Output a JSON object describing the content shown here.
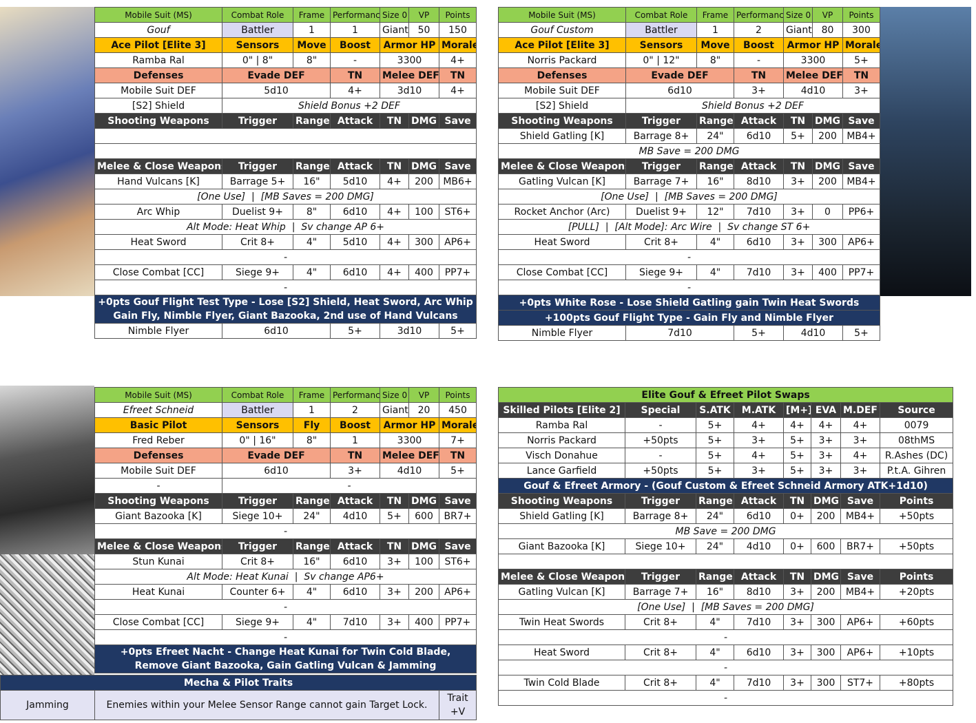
{
  "cards": [
    {
      "header": [
        "Mobile Suit (MS)",
        "Combat Role",
        "Frame",
        "Performance",
        "Size 0",
        "VP",
        "Points"
      ],
      "suit": [
        "Gouf",
        "Battler",
        "1",
        "1",
        "Giant",
        "50",
        "150"
      ],
      "pilot_header": [
        "Ace Pilot [Elite 3]",
        "Sensors",
        "Move",
        "Boost",
        "Armor HP",
        "Morale"
      ],
      "pilot": [
        "Ramba Ral",
        "0\" | 8\"",
        "8\"",
        "-",
        "3300",
        "4+"
      ],
      "defense_header": [
        "Defenses",
        "Evade DEF",
        "TN",
        "Melee DEF",
        "TN"
      ],
      "defenses": [
        [
          "Mobile Suit DEF",
          "5d10",
          "4+",
          "3d10",
          "4+"
        ],
        [
          "[S2] Shield",
          "Shield Bonus +2 DEF"
        ]
      ],
      "shooting_header": [
        "Shooting Weapons",
        "Trigger",
        "Range",
        "Attack",
        "TN",
        "DMG",
        "Save"
      ],
      "shooting": [],
      "melee_header": [
        "Melee & Close Weapons",
        "Trigger",
        "Range",
        "Attack",
        "TN",
        "DMG",
        "Save"
      ],
      "melee": [
        [
          "Hand Vulcans [K]",
          "Barrage 5+",
          "16\"",
          "5d10",
          "4+",
          "200",
          "MB6+"
        ],
        "[One Use]  |  [MB Saves = 200 DMG]",
        [
          "Arc Whip",
          "Duelist 9+",
          "8\"",
          "6d10",
          "4+",
          "100",
          "ST6+"
        ],
        "Alt Mode: Heat Whip  |  Sv change AP 6+",
        [
          "Heat Sword",
          "Crit 8+",
          "4\"",
          "5d10",
          "4+",
          "300",
          "AP6+"
        ],
        "-",
        [
          "Close Combat [CC]",
          "Siege 9+",
          "4\"",
          "6d10",
          "4+",
          "400",
          "PP7+"
        ],
        "-"
      ],
      "variants": [
        "+0pts Gouf Flight Test Type - Lose [S2] Shield, Heat Sword, Arc Whip Gain Fly, Nimble Flyer, Giant Bazooka, 2nd use of Hand Vulcans"
      ],
      "extra": [
        "Nimble Flyer",
        "6d10",
        "5+",
        "3d10",
        "5+"
      ]
    },
    {
      "header": [
        "Mobile Suit (MS)",
        "Combat Role",
        "Frame",
        "Performance",
        "Size 0",
        "VP",
        "Points"
      ],
      "suit": [
        "Gouf Custom",
        "Battler",
        "1",
        "2",
        "Giant",
        "80",
        "300"
      ],
      "pilot_header": [
        "Ace Pilot [Elite 3]",
        "Sensors",
        "Move",
        "Boost",
        "Armor HP",
        "Morale"
      ],
      "pilot": [
        "Norris Packard",
        "0\" | 12\"",
        "8\"",
        "-",
        "3300",
        "5+"
      ],
      "defense_header": [
        "Defenses",
        "Evade DEF",
        "TN",
        "Melee DEF",
        "TN"
      ],
      "defenses": [
        [
          "Mobile Suit DEF",
          "6d10",
          "3+",
          "4d10",
          "3+"
        ],
        [
          "[S2] Shield",
          "Shield Bonus +2 DEF"
        ]
      ],
      "shooting_header": [
        "Shooting Weapons",
        "Trigger",
        "Range",
        "Attack",
        "TN",
        "DMG",
        "Save"
      ],
      "shooting": [
        [
          "Shield Gatling [K]",
          "Barrage 8+",
          "24\"",
          "6d10",
          "5+",
          "200",
          "MB4+"
        ],
        "MB Save = 200 DMG"
      ],
      "melee_header": [
        "Melee & Close Weapons",
        "Trigger",
        "Range",
        "Attack",
        "TN",
        "DMG",
        "Save"
      ],
      "melee": [
        [
          "Gatling Vulcan [K]",
          "Barrage 7+",
          "16\"",
          "8d10",
          "3+",
          "200",
          "MB4+"
        ],
        "[One Use]  |  [MB Saves = 200 DMG]",
        [
          "Rocket Anchor (Arc)",
          "Duelist 9+",
          "12\"",
          "7d10",
          "3+",
          "0",
          "PP6+"
        ],
        "[PULL]  |  [Alt Mode]: Arc Wire  |  Sv change ST 6+",
        [
          "Heat Sword",
          "Crit 8+",
          "4\"",
          "6d10",
          "3+",
          "300",
          "AP6+"
        ],
        "-",
        [
          "Close Combat [CC]",
          "Siege 9+",
          "4\"",
          "7d10",
          "3+",
          "400",
          "PP7+"
        ],
        "-"
      ],
      "variants": [
        "+0pts White Rose - Lose Shield Gatling gain Twin Heat Swords",
        "+100pts Gouf Flight Type - Gain Fly and Nimble Flyer"
      ],
      "extra": [
        "Nimble Flyer",
        "7d10",
        "5+",
        "4d10",
        "5+"
      ]
    },
    {
      "header": [
        "Mobile Suit (MS)",
        "Combat Role",
        "Frame",
        "Performance",
        "Size 0",
        "VP",
        "Points"
      ],
      "suit": [
        "Efreet Schneid",
        "Battler",
        "1",
        "2",
        "Giant",
        "20",
        "450"
      ],
      "pilot_header": [
        "Basic Pilot",
        "Sensors",
        "Fly",
        "Boost",
        "Armor HP",
        "Morale"
      ],
      "pilot": [
        "Fred Reber",
        "0\" | 16\"",
        "8\"",
        "1",
        "3300",
        "7+"
      ],
      "defense_header": [
        "Defenses",
        "Evade DEF",
        "TN",
        "Melee DEF",
        "TN"
      ],
      "defenses": [
        [
          "Mobile Suit DEF",
          "6d10",
          "3+",
          "4d10",
          "5+"
        ],
        [
          "-",
          "-"
        ]
      ],
      "shooting_header": [
        "Shooting Weapons",
        "Trigger",
        "Range",
        "Attack",
        "TN",
        "DMG",
        "Save"
      ],
      "shooting": [
        [
          "Giant Bazooka [K]",
          "Siege 10+",
          "24\"",
          "4d10",
          "5+",
          "600",
          "BR7+"
        ],
        "-"
      ],
      "melee_header": [
        "Melee & Close Weapons",
        "Trigger",
        "Range",
        "Attack",
        "TN",
        "DMG",
        "Save"
      ],
      "melee": [
        [
          "Stun Kunai",
          "Crit 8+",
          "16\"",
          "6d10",
          "3+",
          "100",
          "ST6+"
        ],
        "Alt Mode: Heat Kunai  |  Sv change AP6+",
        [
          "Heat Kunai",
          "Counter 6+",
          "4\"",
          "6d10",
          "3+",
          "200",
          "AP6+"
        ],
        "-",
        [
          "Close Combat [CC]",
          "Siege 9+",
          "4\"",
          "7d10",
          "3+",
          "400",
          "PP7+"
        ],
        "-"
      ],
      "variants": [
        "+0pts Efreet Nacht - Change Heat Kunai for Twin Cold Blade, Remove Giant Bazooka, Gain Gatling Vulcan & Jamming"
      ]
    }
  ],
  "traits": {
    "title": "Mecha & Pilot Traits",
    "rows": [
      [
        "Jamming",
        "Enemies within your Melee Sensor Range cannot gain Target Lock.",
        "Trait +V"
      ]
    ]
  },
  "swaps": {
    "title": "Elite Gouf & Efreet Pilot Swaps",
    "pilot_header": [
      "Skilled Pilots [Elite 2]",
      "Special",
      "S.ATK",
      "M.ATK",
      "[M+]",
      "EVA",
      "M.DEF",
      "Source"
    ],
    "pilots": [
      [
        "Ramba Ral",
        "-",
        "5+",
        "4+",
        "4+",
        "4+",
        "4+",
        "0079"
      ],
      [
        "Norris Packard",
        "+50pts",
        "5+",
        "3+",
        "5+",
        "3+",
        "3+",
        "08thMS"
      ],
      [
        "Visch Donahue",
        "-",
        "5+",
        "4+",
        "5+",
        "3+",
        "4+",
        "R.Ashes (DC)"
      ],
      [
        "Lance Garfield",
        "+50pts",
        "5+",
        "3+",
        "5+",
        "3+",
        "3+",
        "P.t.A. Gihren"
      ]
    ],
    "armory_title": "Gouf & Efreet Armory - (Gouf Custom & Efreet Schneid Armory ATK+1d10)",
    "shooting_header": [
      "Shooting Weapons",
      "Trigger",
      "Range",
      "Attack",
      "TN",
      "DMG",
      "Save",
      "Points"
    ],
    "shooting": [
      [
        "Shield Gatling [K]",
        "Barrage 8+",
        "24\"",
        "6d10",
        "0+",
        "200",
        "MB4+",
        "+50pts"
      ],
      "MB Save = 200 DMG",
      [
        "Giant Bazooka [K]",
        "Siege 10+",
        "24\"",
        "4d10",
        "0+",
        "600",
        "BR7+",
        "+50pts"
      ]
    ],
    "melee_header": [
      "Melee & Close Weapons",
      "Trigger",
      "Range",
      "Attack",
      "TN",
      "DMG",
      "Save",
      "Points"
    ],
    "melee": [
      [
        "Gatling Vulcan [K]",
        "Barrage 7+",
        "16\"",
        "8d10",
        "3+",
        "200",
        "MB4+",
        "+20pts"
      ],
      "[One Use]  |  [MB Saves = 200 DMG]",
      [
        "Twin Heat Swords",
        "Crit 8+",
        "4\"",
        "7d10",
        "3+",
        "300",
        "AP6+",
        "+60pts"
      ],
      "-",
      [
        "Heat Sword",
        "Crit 8+",
        "4\"",
        "6d10",
        "3+",
        "300",
        "AP6+",
        "+10pts"
      ],
      "-",
      [
        "Twin Cold Blade",
        "Crit 8+",
        "4\"",
        "7d10",
        "3+",
        "300",
        "ST7+",
        "+80pts"
      ],
      "-"
    ]
  }
}
